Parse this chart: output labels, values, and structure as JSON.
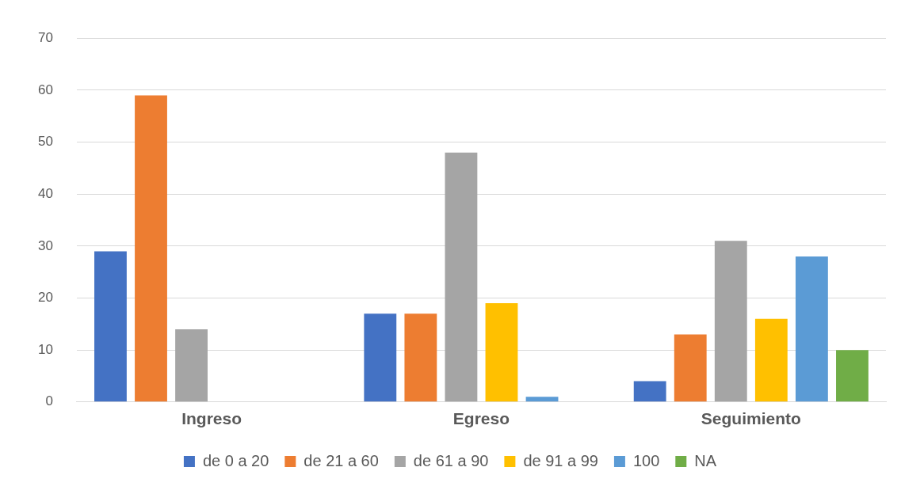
{
  "chart_data": {
    "type": "bar",
    "categories": [
      "Ingreso",
      "Egreso",
      "Seguimiento"
    ],
    "series": [
      {
        "name": "de 0 a 20",
        "color": "#4472c4",
        "values": [
          29,
          17,
          4
        ]
      },
      {
        "name": "de 21 a 60",
        "color": "#ed7d31",
        "values": [
          59,
          17,
          13
        ]
      },
      {
        "name": "de 61 a 90",
        "color": "#a5a5a5",
        "values": [
          14,
          48,
          31
        ]
      },
      {
        "name": "de 91 a 99",
        "color": "#ffc000",
        "values": [
          0,
          19,
          16
        ]
      },
      {
        "name": "100",
        "color": "#5b9bd5",
        "values": [
          0,
          1,
          28
        ]
      },
      {
        "name": "NA",
        "color": "#70ad47",
        "values": [
          0,
          0,
          10
        ]
      }
    ],
    "ylim": [
      0,
      70
    ],
    "yticks": [
      0,
      10,
      20,
      30,
      40,
      50,
      60,
      70
    ],
    "grid": "y",
    "legend": "bottom"
  }
}
